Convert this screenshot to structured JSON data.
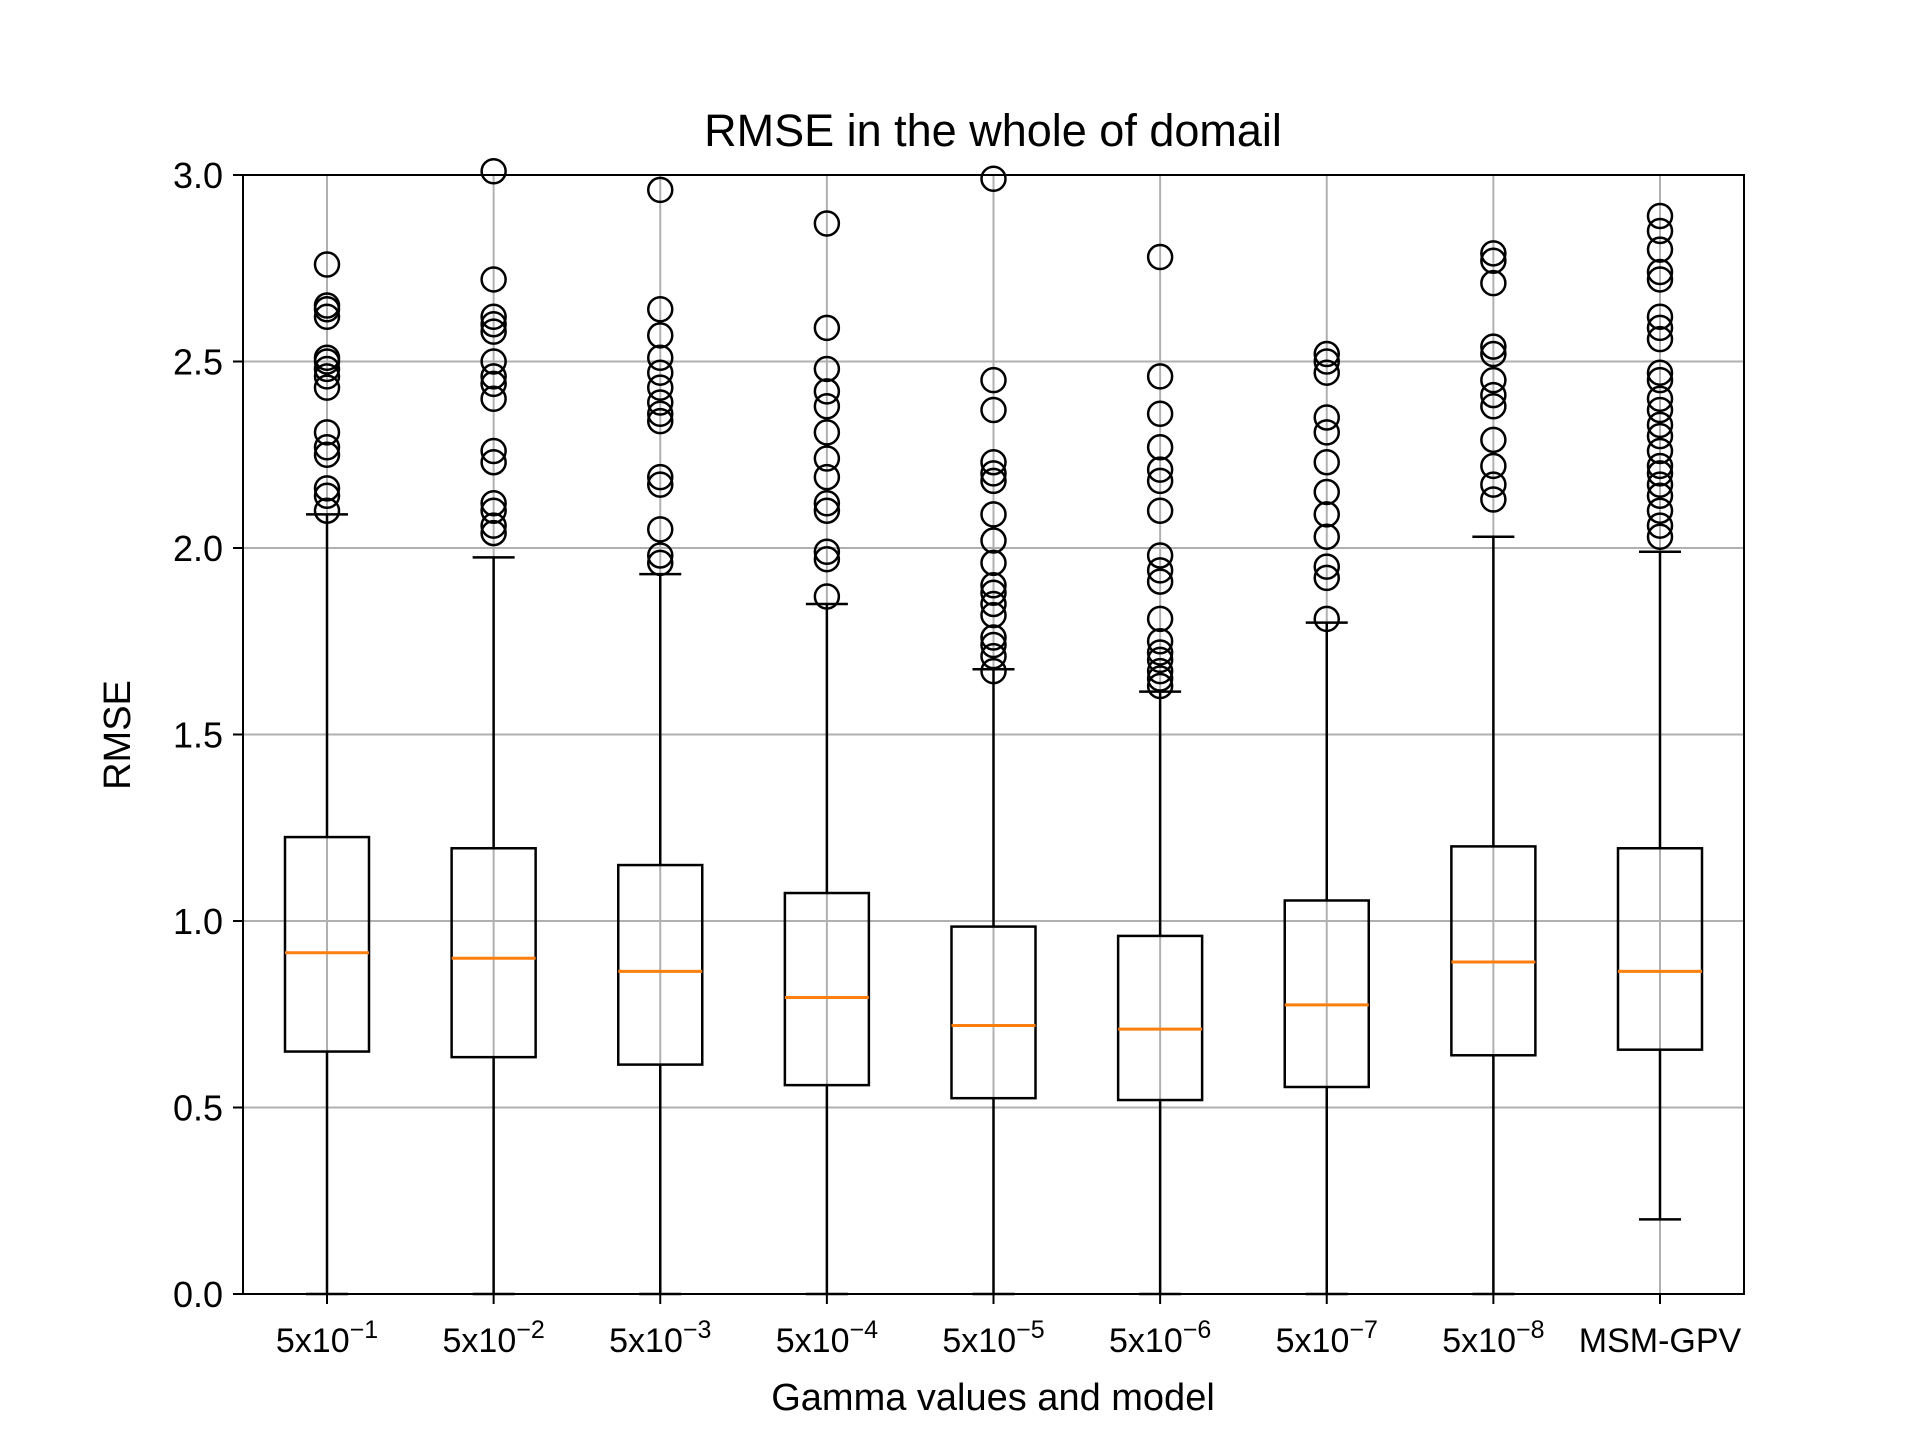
{
  "colors": {
    "median": "#ff7f0e",
    "box": "#000000",
    "grid": "#b0b0b0",
    "background": "#ffffff"
  },
  "chart_data": {
    "type": "box",
    "title": "RMSE in the whole of domail",
    "xlabel": "Gamma values and model",
    "ylabel": "RMSE",
    "ylim": [
      0,
      3.0
    ],
    "yticks": [
      "0.0",
      "0.5",
      "1.0",
      "1.5",
      "2.0",
      "2.5",
      "3.0"
    ],
    "grid": true,
    "categories": [
      {
        "base": "5x10",
        "exp": "−1"
      },
      {
        "base": "5x10",
        "exp": "−2"
      },
      {
        "base": "5x10",
        "exp": "−3"
      },
      {
        "base": "5x10",
        "exp": "−4"
      },
      {
        "base": "5x10",
        "exp": "−5"
      },
      {
        "base": "5x10",
        "exp": "−6"
      },
      {
        "base": "5x10",
        "exp": "−7"
      },
      {
        "base": "5x10",
        "exp": "−8"
      },
      {
        "base": "MSM-GPV",
        "exp": ""
      }
    ],
    "boxes": [
      {
        "whislo": 0.0,
        "q1": 0.65,
        "med": 0.915,
        "q3": 1.225,
        "whishi": 2.09,
        "fliers": [
          2.1,
          2.14,
          2.16,
          2.25,
          2.27,
          2.31,
          2.43,
          2.46,
          2.48,
          2.5,
          2.51,
          2.62,
          2.64,
          2.65,
          2.76
        ]
      },
      {
        "whislo": 0.0,
        "q1": 0.635,
        "med": 0.9,
        "q3": 1.195,
        "whishi": 1.975,
        "fliers": [
          2.04,
          2.06,
          2.1,
          2.12,
          2.23,
          2.26,
          2.4,
          2.44,
          2.46,
          2.5,
          2.58,
          2.6,
          2.62,
          2.72,
          3.01
        ]
      },
      {
        "whislo": 0.0,
        "q1": 0.615,
        "med": 0.865,
        "q3": 1.15,
        "whishi": 1.93,
        "fliers": [
          1.96,
          1.98,
          2.05,
          2.17,
          2.19,
          2.34,
          2.36,
          2.39,
          2.43,
          2.47,
          2.51,
          2.57,
          2.64,
          2.96
        ]
      },
      {
        "whislo": 0.0,
        "q1": 0.56,
        "med": 0.795,
        "q3": 1.075,
        "whishi": 1.85,
        "fliers": [
          1.87,
          1.97,
          1.99,
          2.1,
          2.12,
          2.19,
          2.24,
          2.31,
          2.38,
          2.42,
          2.48,
          2.59,
          2.87
        ]
      },
      {
        "whislo": 0.0,
        "q1": 0.525,
        "med": 0.72,
        "q3": 0.985,
        "whishi": 1.675,
        "fliers": [
          1.67,
          1.71,
          1.74,
          1.76,
          1.82,
          1.85,
          1.88,
          1.9,
          1.96,
          2.02,
          2.09,
          2.18,
          2.2,
          2.23,
          2.37,
          2.45,
          2.99
        ]
      },
      {
        "whislo": 0.0,
        "q1": 0.52,
        "med": 0.71,
        "q3": 0.96,
        "whishi": 1.615,
        "fliers": [
          1.63,
          1.65,
          1.67,
          1.7,
          1.72,
          1.75,
          1.81,
          1.91,
          1.94,
          1.98,
          2.1,
          2.18,
          2.21,
          2.27,
          2.36,
          2.46,
          2.78
        ]
      },
      {
        "whislo": 0.0,
        "q1": 0.555,
        "med": 0.775,
        "q3": 1.055,
        "whishi": 1.8,
        "fliers": [
          1.81,
          1.92,
          1.95,
          2.03,
          2.09,
          2.15,
          2.23,
          2.31,
          2.35,
          2.47,
          2.5,
          2.52
        ]
      },
      {
        "whislo": 0.0,
        "q1": 0.64,
        "med": 0.89,
        "q3": 1.2,
        "whishi": 2.03,
        "fliers": [
          2.13,
          2.17,
          2.22,
          2.29,
          2.38,
          2.41,
          2.45,
          2.52,
          2.54,
          2.71,
          2.77,
          2.79
        ]
      },
      {
        "whislo": 0.2,
        "q1": 0.655,
        "med": 0.865,
        "q3": 1.195,
        "whishi": 1.99,
        "fliers": [
          2.03,
          2.06,
          2.1,
          2.14,
          2.17,
          2.2,
          2.22,
          2.26,
          2.3,
          2.33,
          2.37,
          2.4,
          2.45,
          2.47,
          2.56,
          2.59,
          2.62,
          2.72,
          2.74,
          2.8,
          2.85,
          2.89
        ]
      }
    ]
  }
}
